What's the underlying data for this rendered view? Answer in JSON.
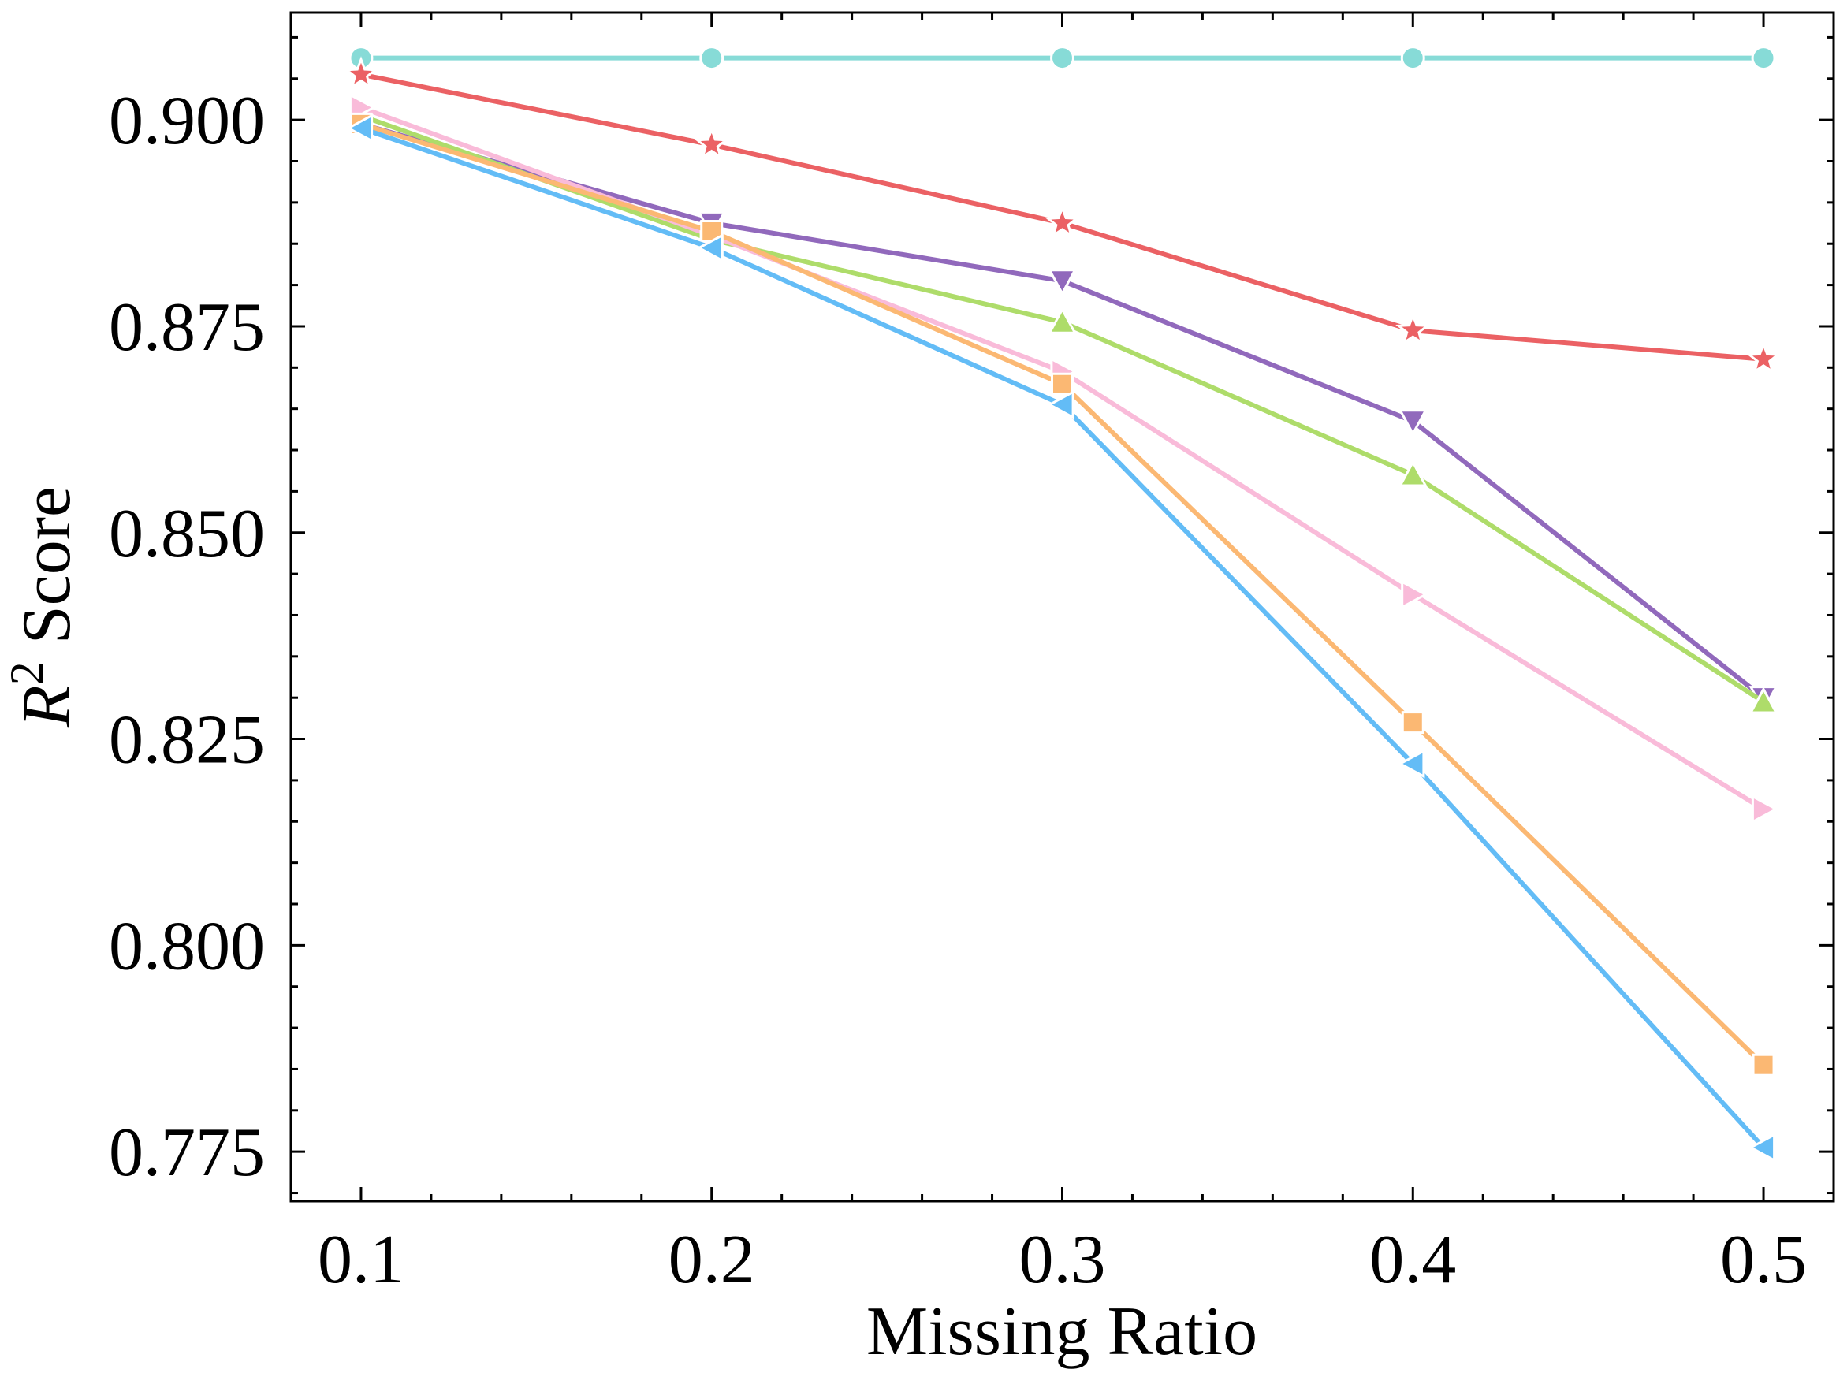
{
  "chart_data": {
    "type": "line",
    "title": "",
    "xlabel": "Missing Ratio",
    "ylabel": {
      "symbol": "R",
      "superscript": "2",
      "suffix": "Score"
    },
    "x": [
      0.1,
      0.2,
      0.3,
      0.4,
      0.5
    ],
    "xlim": [
      0.08,
      0.52
    ],
    "ylim": [
      0.769,
      0.913
    ],
    "xticks": [
      "0.1",
      "0.2",
      "0.3",
      "0.4",
      "0.5"
    ],
    "yticks": [
      "0.775",
      "0.800",
      "0.825",
      "0.850",
      "0.875",
      "0.900"
    ],
    "grid": false,
    "legend": "none",
    "series": [
      {
        "color": "#87DBD7",
        "marker": "circle",
        "values": [
          0.9075,
          0.9075,
          0.9075,
          0.9075,
          0.9075
        ]
      },
      {
        "color": "#EB6164",
        "marker": "star",
        "values": [
          0.9055,
          0.897,
          0.8875,
          0.8745,
          0.871
        ]
      },
      {
        "color": "#9169BC",
        "marker": "triangle-down",
        "values": [
          0.8995,
          0.8875,
          0.8805,
          0.8635,
          0.83
        ]
      },
      {
        "color": "#AEDC6A",
        "marker": "triangle-up",
        "values": [
          0.9005,
          0.8855,
          0.8755,
          0.857,
          0.8295
        ]
      },
      {
        "color": "#F9BBD9",
        "marker": "triangle-right",
        "values": [
          0.9015,
          0.886,
          0.8695,
          0.8425,
          0.8165
        ]
      },
      {
        "color": "#FBB873",
        "marker": "square",
        "values": [
          0.8995,
          0.8865,
          0.868,
          0.827,
          0.7855
        ]
      },
      {
        "color": "#63BCF6",
        "marker": "triangle-left",
        "values": [
          0.899,
          0.8845,
          0.8655,
          0.822,
          0.7755
        ]
      }
    ]
  }
}
